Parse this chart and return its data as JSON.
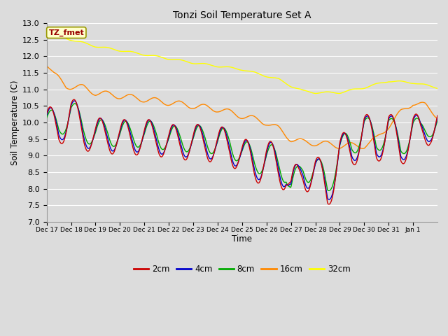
{
  "title": "Tonzi Soil Temperature Set A",
  "xlabel": "Time",
  "ylabel": "Soil Temperature (C)",
  "ylim": [
    7.0,
    13.0
  ],
  "yticks": [
    7.0,
    7.5,
    8.0,
    8.5,
    9.0,
    9.5,
    10.0,
    10.5,
    11.0,
    11.5,
    12.0,
    12.5,
    13.0
  ],
  "background_color": "#dcdcdc",
  "plot_bg_color": "#dcdcdc",
  "grid_color": "#ffffff",
  "annotation_text": "TZ_fmet",
  "annotation_color": "#990000",
  "annotation_bg": "#ffffcc",
  "annotation_edge": "#999900",
  "colors": {
    "2cm": "#cc0000",
    "4cm": "#0000cc",
    "8cm": "#00aa00",
    "16cm": "#ff8800",
    "32cm": "#ffff00"
  },
  "legend_labels": [
    "2cm",
    "4cm",
    "8cm",
    "16cm",
    "32cm"
  ],
  "xtick_labels": [
    "Dec 17",
    "Dec 18",
    "Dec 19",
    "Dec 20",
    "Dec 21",
    "Dec 22",
    "Dec 23",
    "Dec 24",
    "Dec 25",
    "Dec 26",
    "Dec 27",
    "Dec 28",
    "Dec 29",
    "Dec 30",
    "Dec 31",
    "Jan 1"
  ]
}
